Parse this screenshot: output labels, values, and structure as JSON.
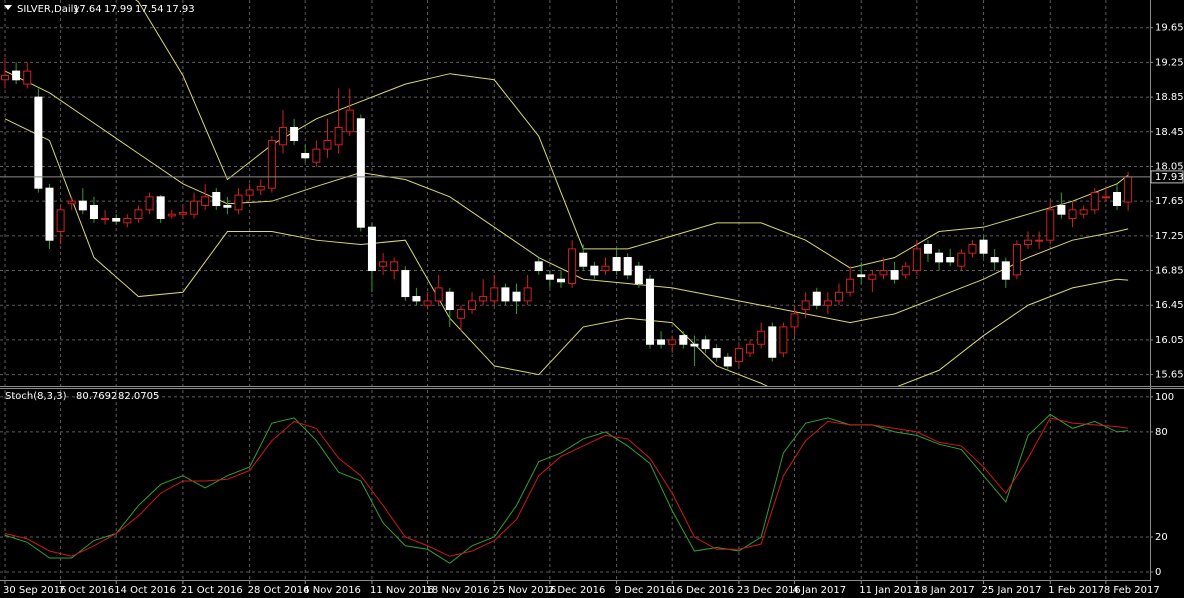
{
  "chart_data": [
    {
      "type": "candlestick",
      "symbol": "SILVER,Daily",
      "categories": [
        "30 Sep 2016",
        null,
        null,
        null,
        null,
        "7 Oct 2016",
        null,
        null,
        null,
        null,
        "14 Oct 2016",
        null,
        null,
        null,
        null,
        null,
        "21 Oct 2016",
        null,
        null,
        null,
        null,
        null,
        "28 Oct 2016",
        null,
        null,
        null,
        null,
        "4 Nov 2016",
        null,
        null,
        null,
        null,
        null,
        "11 Nov 2016",
        null,
        null,
        null,
        null,
        "18 Nov 2016",
        null,
        null,
        null,
        null,
        null,
        "25 Nov 2016",
        null,
        null,
        null,
        null,
        "2 Dec 2016",
        null,
        null,
        null,
        null,
        null,
        "9 Dec 2016",
        null,
        null,
        null,
        null,
        "16 Dec 2016",
        null,
        null,
        null,
        null,
        null,
        "23 Dec 2016",
        null,
        null,
        null,
        null,
        "4 Jan 2017",
        null,
        null,
        null,
        null,
        null,
        "11 Jan 2017",
        null,
        null,
        null,
        null,
        "18 Jan 2017",
        null,
        null,
        null,
        null,
        null,
        "25 Jan 2017",
        null,
        null,
        null,
        null,
        null,
        "1 Feb 2017",
        null,
        null,
        null,
        null,
        "8 Feb 2017",
        null,
        null
      ],
      "open": [
        19.05,
        19.15,
        19.0,
        18.85,
        17.8,
        17.3,
        17.62,
        17.65,
        17.6,
        17.45,
        17.45,
        17.4,
        17.45,
        17.55,
        17.7,
        17.48,
        17.5,
        17.5,
        17.6,
        17.75,
        17.6,
        17.55,
        17.72,
        17.78,
        17.8,
        18.3,
        18.5,
        18.2,
        18.1,
        18.25,
        18.3,
        18.45,
        18.6,
        17.35,
        16.9,
        16.85,
        16.85,
        16.55,
        16.45,
        16.5,
        16.6,
        16.3,
        16.4,
        16.5,
        16.5,
        16.65,
        16.6,
        16.5,
        16.95,
        16.8,
        16.75,
        16.7,
        17.05,
        16.9,
        16.85,
        17.0,
        17.0,
        16.9,
        16.75,
        16.05,
        16.0,
        16.1,
        16.0,
        16.05,
        15.95,
        15.85,
        15.8,
        15.9,
        16.0,
        16.2,
        15.9,
        16.2,
        16.4,
        16.6,
        16.45,
        16.5,
        16.6,
        16.8,
        16.75,
        16.8,
        16.85,
        16.8,
        16.85,
        17.15,
        17.05,
        17.0,
        16.9,
        17.05,
        17.2,
        17.0,
        16.95,
        16.8,
        17.15,
        17.2,
        17.2,
        17.6,
        17.45,
        17.5,
        17.55,
        17.7,
        17.75,
        17.64
      ],
      "high": [
        19.3,
        19.25,
        19.25,
        18.95,
        17.85,
        17.6,
        17.7,
        17.8,
        17.7,
        17.55,
        17.5,
        17.5,
        17.6,
        17.75,
        17.72,
        17.55,
        17.6,
        17.75,
        17.85,
        17.8,
        17.7,
        17.8,
        17.85,
        17.9,
        18.4,
        18.7,
        18.6,
        18.3,
        18.35,
        18.6,
        18.95,
        18.95,
        18.65,
        17.4,
        17.05,
        17.0,
        16.9,
        16.65,
        16.6,
        16.8,
        16.65,
        16.45,
        16.6,
        16.75,
        16.8,
        16.7,
        16.7,
        16.8,
        17.0,
        16.85,
        16.85,
        17.2,
        17.15,
        16.95,
        17.0,
        17.1,
        17.05,
        16.95,
        16.8,
        16.15,
        16.1,
        16.15,
        16.1,
        16.1,
        16.0,
        15.9,
        16.0,
        16.05,
        16.25,
        16.25,
        16.25,
        16.45,
        16.6,
        16.65,
        16.6,
        16.7,
        16.9,
        16.95,
        16.85,
        17.0,
        16.95,
        16.95,
        17.2,
        17.2,
        17.1,
        17.1,
        17.1,
        17.2,
        17.25,
        17.1,
        17.0,
        17.2,
        17.3,
        17.3,
        17.65,
        17.75,
        17.65,
        17.6,
        17.8,
        17.8,
        17.85,
        17.99
      ],
      "low": [
        18.95,
        19.0,
        18.95,
        17.75,
        17.1,
        17.15,
        17.55,
        17.5,
        17.4,
        17.38,
        17.38,
        17.35,
        17.4,
        17.5,
        17.4,
        17.45,
        17.45,
        17.45,
        17.55,
        17.55,
        17.5,
        17.5,
        17.65,
        17.72,
        17.75,
        18.2,
        18.3,
        18.1,
        18.05,
        18.15,
        18.2,
        18.4,
        17.3,
        16.6,
        16.8,
        16.75,
        16.5,
        16.45,
        16.4,
        16.45,
        16.2,
        16.15,
        16.35,
        16.45,
        16.45,
        16.45,
        16.35,
        16.45,
        16.8,
        16.65,
        16.65,
        16.65,
        16.85,
        16.75,
        16.8,
        16.8,
        16.75,
        16.65,
        15.95,
        15.95,
        15.9,
        15.95,
        15.75,
        15.9,
        15.8,
        15.7,
        15.75,
        15.85,
        15.95,
        15.8,
        15.85,
        16.1,
        16.3,
        16.4,
        16.35,
        16.45,
        16.55,
        16.7,
        16.6,
        16.75,
        16.7,
        16.75,
        16.8,
        16.95,
        16.85,
        16.9,
        16.85,
        17.0,
        17.0,
        16.85,
        16.65,
        16.75,
        17.1,
        17.1,
        17.15,
        17.45,
        17.35,
        17.45,
        17.5,
        17.65,
        17.55,
        17.54
      ],
      "close": [
        19.1,
        19.05,
        19.15,
        17.8,
        17.2,
        17.55,
        17.65,
        17.55,
        17.45,
        17.45,
        17.42,
        17.45,
        17.55,
        17.7,
        17.45,
        17.5,
        17.52,
        17.65,
        17.7,
        17.6,
        17.58,
        17.72,
        17.78,
        17.82,
        18.35,
        18.5,
        18.35,
        18.15,
        18.25,
        18.35,
        18.5,
        18.7,
        17.35,
        16.85,
        16.95,
        16.95,
        16.55,
        16.5,
        16.5,
        16.65,
        16.4,
        16.4,
        16.5,
        16.55,
        16.65,
        16.5,
        16.5,
        16.65,
        16.85,
        16.75,
        16.72,
        17.1,
        16.9,
        16.8,
        16.9,
        16.85,
        16.8,
        16.7,
        16.0,
        16.0,
        16.05,
        16.0,
        15.98,
        15.95,
        15.85,
        15.75,
        15.95,
        16.0,
        16.15,
        15.85,
        16.2,
        16.35,
        16.5,
        16.45,
        16.5,
        16.6,
        16.75,
        16.78,
        16.8,
        16.85,
        16.75,
        16.9,
        17.1,
        17.05,
        16.95,
        16.95,
        17.05,
        17.15,
        17.05,
        16.95,
        16.75,
        17.15,
        17.2,
        17.2,
        17.55,
        17.5,
        17.55,
        17.55,
        17.75,
        17.7,
        17.6,
        17.93
      ],
      "up_color": "#d02020",
      "down_color": "#ffffff",
      "wick_color": "#30a030",
      "bands": {
        "x": [
          0,
          4,
          8,
          12,
          16,
          20,
          24,
          28,
          32,
          36,
          40,
          44,
          48,
          52,
          56,
          60,
          64,
          68,
          72,
          76,
          80,
          84,
          88,
          92,
          96,
          100,
          101
        ],
        "series": [
          {
            "color": "#d8d870",
            "values": [
              20.9,
              20.6,
              20.3,
              19.95,
              19.1,
              17.9,
              18.3,
              18.6,
              18.8,
              19.0,
              19.12,
              19.05,
              18.4,
              17.1,
              17.1,
              17.25,
              17.4,
              17.4,
              17.2,
              16.88,
              17.0,
              17.3,
              17.35,
              17.5,
              17.65,
              17.85,
              17.95
            ]
          },
          {
            "color": "#d8d870",
            "values": [
              19.15,
              18.9,
              18.55,
              18.2,
              17.85,
              17.62,
              17.65,
              17.82,
              17.98,
              17.9,
              17.7,
              17.35,
              17.0,
              16.75,
              16.7,
              16.65,
              16.55,
              16.45,
              16.35,
              16.25,
              16.35,
              16.55,
              16.75,
              17.0,
              17.2,
              17.3,
              17.33
            ]
          },
          {
            "color": "#d8d870",
            "values": [
              18.6,
              18.35,
              17.0,
              16.55,
              16.6,
              17.3,
              17.3,
              17.2,
              17.15,
              17.2,
              16.3,
              15.75,
              15.65,
              16.2,
              16.3,
              16.25,
              15.75,
              15.55,
              15.3,
              15.45,
              15.5,
              15.7,
              16.1,
              16.45,
              16.65,
              16.75,
              16.74
            ]
          }
        ]
      },
      "ylim": [
        15.53,
        19.97
      ],
      "yticks": [
        15.65,
        16.05,
        16.45,
        16.85,
        17.25,
        17.65,
        18.05,
        18.45,
        18.85,
        19.25,
        19.65
      ],
      "grid": true
    },
    {
      "type": "line",
      "title": "Stoch(8,3,3)",
      "x": [
        0,
        2,
        4,
        6,
        8,
        10,
        12,
        14,
        16,
        18,
        20,
        22,
        24,
        26,
        28,
        30,
        32,
        34,
        36,
        38,
        40,
        42,
        44,
        46,
        48,
        50,
        52,
        54,
        56,
        58,
        60,
        62,
        64,
        66,
        68,
        70,
        72,
        74,
        76,
        78,
        80,
        82,
        84,
        86,
        88,
        90,
        92,
        94,
        96,
        98,
        100,
        101
      ],
      "series": [
        {
          "color": "#30a030",
          "values": [
            21,
            17,
            8,
            8,
            18,
            22,
            38,
            50,
            55,
            48,
            55,
            60,
            85,
            88,
            75,
            57,
            52,
            28,
            15,
            13,
            5,
            15,
            20,
            38,
            63,
            68,
            76,
            80,
            72,
            62,
            35,
            12,
            14,
            12,
            20,
            68,
            85,
            88,
            84,
            84,
            80,
            78,
            73,
            70,
            55,
            40,
            78,
            90,
            82,
            86,
            80,
            80.7692
          ]
        },
        {
          "color": "#d01818",
          "values": [
            22,
            19,
            12,
            9,
            15,
            22,
            32,
            45,
            52,
            52,
            53,
            58,
            75,
            86,
            82,
            65,
            55,
            38,
            20,
            15,
            9,
            12,
            18,
            30,
            55,
            66,
            72,
            78,
            76,
            65,
            45,
            20,
            13,
            13,
            16,
            55,
            75,
            86,
            84,
            84,
            82,
            80,
            74,
            72,
            60,
            45,
            65,
            88,
            85,
            84,
            83,
            82.0705
          ]
        }
      ],
      "ylim": [
        -3.4,
        104.5
      ],
      "yticks": [
        0,
        20,
        80,
        100
      ],
      "grid": true
    }
  ]
}
